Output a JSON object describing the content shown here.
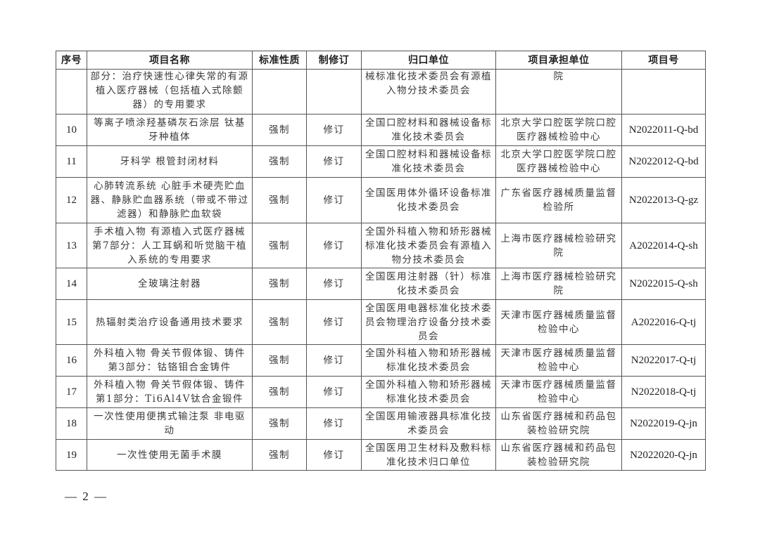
{
  "headers": [
    "序号",
    "项目名称",
    "标准性质",
    "制修订",
    "归口单位",
    "项目承担单位",
    "项目号"
  ],
  "rows": [
    {
      "no": "",
      "name": "部分：治疗快速性心律失常的有源植入医疗器械（包括植入式除颤器）的专用要求",
      "nature": "",
      "type": "",
      "tc": "械标准化技术委员会有源植入物分技术委员会",
      "org": "院",
      "code": ""
    },
    {
      "no": "10",
      "name": "等离子喷涂羟基磷灰石涂层 钛基牙种植体",
      "nature": "强制",
      "type": "修订",
      "tc": "全国口腔材料和器械设备标准化技术委员会",
      "org": "北京大学口腔医学院口腔医疗器械检验中心",
      "code": "N2022011-Q-bd"
    },
    {
      "no": "11",
      "name": "牙科学 根管封闭材料",
      "nature": "强制",
      "type": "修订",
      "tc": "全国口腔材料和器械设备标准化技术委员会",
      "org": "北京大学口腔医学院口腔医疗器械检验中心",
      "code": "N2022012-Q-bd"
    },
    {
      "no": "12",
      "name": "心肺转流系统 心脏手术硬壳贮血器、静脉贮血器系统（带或不带过滤器）和静脉贮血软袋",
      "nature": "强制",
      "type": "修订",
      "tc": "全国医用体外循环设备标准化技术委员会",
      "org": "广东省医疗器械质量监督检验所",
      "code": "N2022013-Q-gz"
    },
    {
      "no": "13",
      "name": "手术植入物 有源植入式医疗器械 第7部分：人工耳蜗和听觉脑干植入系统的专用要求",
      "nature": "强制",
      "type": "修订",
      "tc": "全国外科植入物和矫形器械标准化技术委员会有源植入物分技术委员会",
      "org": "上海市医疗器械检验研究院",
      "code": "A2022014-Q-sh"
    },
    {
      "no": "14",
      "name": "全玻璃注射器",
      "nature": "强制",
      "type": "修订",
      "tc": "全国医用注射器（针）标准化技术委员会",
      "org": "上海市医疗器械检验研究院",
      "code": "N2022015-Q-sh"
    },
    {
      "no": "15",
      "name": "热辐射类治疗设备通用技术要求",
      "nature": "强制",
      "type": "修订",
      "tc": "全国医用电器标准化技术委员会物理治疗设备分技术委员会",
      "org": "天津市医疗器械质量监督检验中心",
      "code": "A2022016-Q-tj"
    },
    {
      "no": "16",
      "name": "外科植入物 骨关节假体锻、铸件 第3部分：钴铬钼合金铸件",
      "nature": "强制",
      "type": "修订",
      "tc": "全国外科植入物和矫形器械标准化技术委员会",
      "org": "天津市医疗器械质量监督检验中心",
      "code": "N2022017-Q-tj"
    },
    {
      "no": "17",
      "name": "外科植入物 骨关节假体锻、铸件 第1部分：Ti6Al4V钛合金锻件",
      "nature": "强制",
      "type": "修订",
      "tc": "全国外科植入物和矫形器械标准化技术委员会",
      "org": "天津市医疗器械质量监督检验中心",
      "code": "N2022018-Q-tj"
    },
    {
      "no": "18",
      "name": "一次性使用便携式输注泵 非电驱动",
      "nature": "强制",
      "type": "修订",
      "tc": "全国医用输液器具标准化技术委员会",
      "org": "山东省医疗器械和药品包装检验研究院",
      "code": "N2022019-Q-jn"
    },
    {
      "no": "19",
      "name": "一次性使用无菌手术膜",
      "nature": "强制",
      "type": "修订",
      "tc": "全国医用卫生材料及敷料标准化技术归口单位",
      "org": "山东省医疗器械和药品包装检验研究院",
      "code": "N2022020-Q-jn"
    }
  ],
  "footer": {
    "page": "— 2 —"
  }
}
